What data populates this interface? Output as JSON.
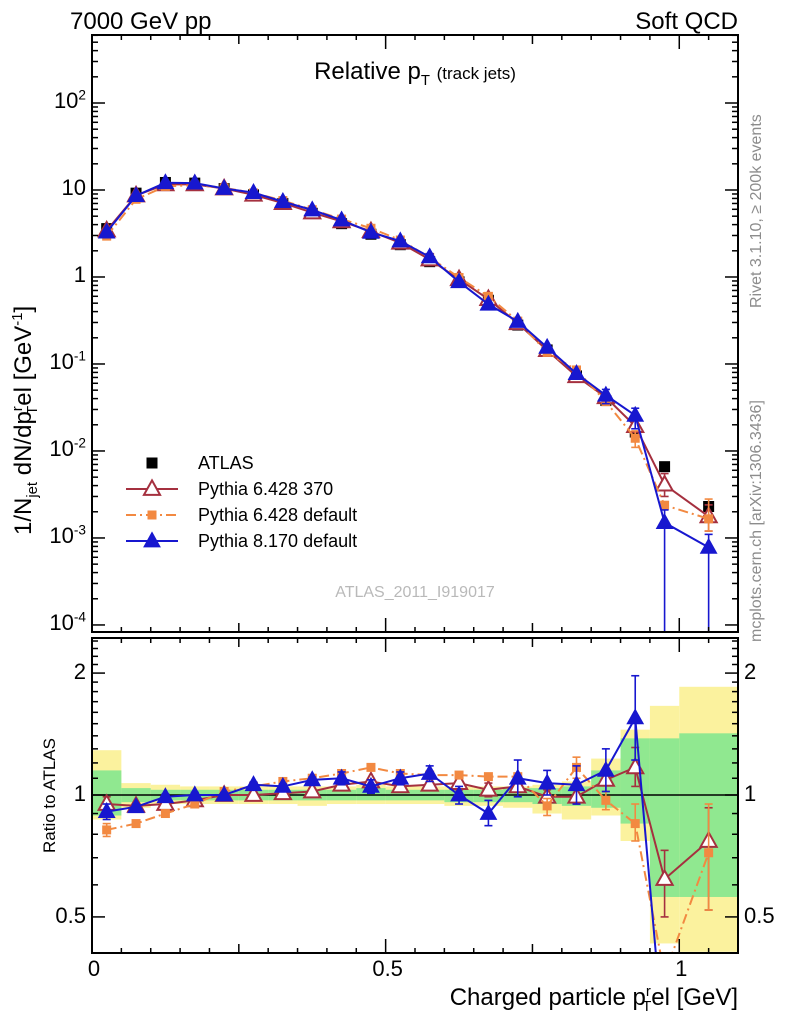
{
  "header": {
    "left": "7000 GeV pp",
    "right": "Soft QCD"
  },
  "side_notes": {
    "top": "Rivet 3.1.10, ≥ 200k events",
    "bottom": "mcplots.cern.ch [arXiv:1306.3436]"
  },
  "watermark": "ATLAS_2011_I919017",
  "colors": {
    "atlas": "#000000",
    "red": "#a5303f",
    "orange": "#f28941",
    "blue": "#1717cf",
    "band_green": "#90e890",
    "band_yellow": "#fbf29e",
    "note_gray": "#8c8c8c",
    "watermark_gray": "#b9b9b9"
  },
  "chart_data": {
    "type": "line",
    "title": "Relative p_{T}",
    "title_note": "(track jets)",
    "xlabel": "Charged particle p^{r}_{T}el [GeV]",
    "ylabel_main": "1/N_{jet} dN/dp^{r}_{T}el [GeV^{-1}]",
    "ylabel_ratio": "Ratio to ATLAS",
    "x_range": [
      0,
      1.1
    ],
    "y_range_main": [
      8.3e-05,
      605
    ],
    "y_scale_main": "log",
    "y_range_ratio": [
      0.407,
      2.442
    ],
    "y_scale_ratio": "log",
    "x_major_ticks": [
      0,
      0.5,
      1
    ],
    "y_major_tick_exponents_main": [
      2,
      1,
      0,
      -1,
      -2,
      -3,
      -4
    ],
    "y_major_ticks_ratio": [
      2,
      1,
      0.5
    ],
    "bin_edges": [
      0,
      0.05,
      0.1,
      0.15,
      0.2,
      0.25,
      0.3,
      0.35,
      0.4,
      0.45,
      0.5,
      0.55,
      0.6,
      0.65,
      0.7,
      0.75,
      0.8,
      0.85,
      0.9,
      0.95,
      1.0,
      1.1
    ],
    "x": [
      0.025,
      0.075,
      0.125,
      0.175,
      0.225,
      0.275,
      0.325,
      0.375,
      0.425,
      0.475,
      0.525,
      0.575,
      0.625,
      0.675,
      0.725,
      0.775,
      0.825,
      0.875,
      0.925,
      0.975,
      1.05
    ],
    "series": [
      {
        "name": "ATLAS",
        "color_key": "atlas",
        "marker": "square-filled",
        "line": "none",
        "values": [
          3.6,
          9.2,
          12.2,
          12.0,
          10.4,
          8.8,
          7.0,
          5.4,
          4.1,
          3.1,
          2.35,
          1.5,
          0.88,
          0.54,
          0.28,
          0.145,
          0.073,
          0.038,
          0.0165,
          0.0066,
          0.0023
        ],
        "ratio": null,
        "ratio_err": null,
        "main_err": {}
      },
      {
        "name": "Pythia 6.428 370",
        "color_key": "red",
        "marker": "triangle-open",
        "line": "solid",
        "values": [
          3.42,
          8.65,
          11.6,
          11.6,
          10.4,
          8.8,
          7.07,
          5.51,
          4.35,
          3.35,
          2.47,
          1.59,
          0.941,
          0.556,
          0.294,
          0.144,
          0.0723,
          0.0414,
          0.0193,
          0.0041,
          0.00177
        ],
        "ratio": [
          0.95,
          0.94,
          0.95,
          0.97,
          1.0,
          1.0,
          1.01,
          1.02,
          1.06,
          1.08,
          1.05,
          1.06,
          1.07,
          1.03,
          1.05,
          0.99,
          0.99,
          1.09,
          1.17,
          0.62,
          0.77
        ],
        "ratio_err": [
          [
            0.91,
            0.99
          ],
          null,
          null,
          null,
          null,
          null,
          null,
          null,
          null,
          null,
          null,
          null,
          [
            1.03,
            1.11
          ],
          [
            0.99,
            1.07
          ],
          null,
          [
            0.95,
            1.03
          ],
          [
            0.95,
            1.03
          ],
          [
            1.02,
            1.14
          ],
          [
            1.05,
            1.31
          ],
          [
            0.5,
            0.73
          ],
          [
            0.52,
            0.93
          ]
        ],
        "main_err": {
          "18": [
            0.013,
            0.02
          ],
          "19": [
            0.003,
            0.0055
          ],
          "20": [
            0.0012,
            0.0024
          ]
        }
      },
      {
        "name": "Pythia 6.428 default",
        "color_key": "orange",
        "marker": "square-filled",
        "line": "dashdot",
        "values": [
          2.95,
          7.82,
          11.0,
          11.4,
          10.6,
          9.24,
          7.56,
          5.94,
          4.63,
          3.63,
          2.66,
          1.68,
          0.986,
          0.599,
          0.311,
          0.136,
          0.0854,
          0.0369,
          0.014,
          0.00238,
          0.00166
        ],
        "ratio": [
          0.82,
          0.85,
          0.9,
          0.95,
          1.02,
          1.05,
          1.08,
          1.1,
          1.13,
          1.17,
          1.13,
          1.12,
          1.12,
          1.11,
          1.11,
          0.94,
          1.17,
          0.97,
          0.85,
          0.36,
          0.72
        ],
        "ratio_err": [
          [
            0.79,
            0.85
          ],
          null,
          null,
          null,
          null,
          null,
          null,
          null,
          null,
          null,
          null,
          null,
          null,
          null,
          null,
          [
            0.89,
            0.98
          ],
          [
            1.1,
            1.24
          ],
          [
            0.92,
            1.02
          ],
          [
            0.77,
            0.95
          ],
          null,
          [
            0.52,
            0.95
          ]
        ],
        "main_err": {
          "18": [
            0.011,
            0.017
          ],
          "20": [
            0.0012,
            0.0028
          ]
        }
      },
      {
        "name": "Pythia 8.170 default",
        "color_key": "blue",
        "marker": "triangle-filled",
        "line": "solid",
        "values": [
          3.28,
          8.6,
          12.1,
          12.0,
          10.4,
          9.33,
          7.35,
          5.89,
          4.51,
          3.26,
          2.59,
          1.7,
          0.88,
          0.486,
          0.308,
          0.155,
          0.0774,
          0.0437,
          0.0256,
          0.0015,
          0.00078
        ],
        "ratio": [
          0.91,
          0.935,
          0.99,
          1.0,
          1.0,
          1.06,
          1.05,
          1.09,
          1.1,
          1.05,
          1.1,
          1.13,
          1.0,
          0.9,
          1.1,
          1.07,
          1.06,
          1.15,
          1.55,
          0.23,
          0.34
        ],
        "ratio_err": [
          [
            0.87,
            0.95
          ],
          null,
          null,
          null,
          null,
          null,
          null,
          null,
          [
            1.06,
            1.14
          ],
          [
            1.01,
            1.09
          ],
          [
            1.06,
            1.14
          ],
          [
            1.08,
            1.18
          ],
          [
            0.95,
            1.05
          ],
          [
            0.84,
            0.97
          ],
          [
            0.99,
            1.22
          ],
          [
            1.0,
            1.15
          ],
          [
            0.95,
            1.18
          ],
          [
            1.02,
            1.3
          ],
          [
            1.22,
            1.97
          ],
          null,
          null
        ],
        "main_err": {
          "11": [
            1.55,
            1.85
          ],
          "17": [
            0.035,
            0.051
          ],
          "18": [
            0.018,
            0.031
          ],
          "19": [
            8e-05,
            0.0021
          ],
          "20": [
            8e-05,
            0.0011
          ]
        }
      }
    ],
    "bands": {
      "green": [
        [
          0.89,
          1.15
        ],
        [
          0.96,
          1.04
        ],
        [
          0.97,
          1.03
        ],
        [
          0.97,
          1.03
        ],
        [
          0.97,
          1.03
        ],
        [
          0.97,
          1.03
        ],
        [
          0.97,
          1.03
        ],
        [
          0.97,
          1.03
        ],
        [
          0.97,
          1.03
        ],
        [
          0.97,
          1.04
        ],
        [
          0.97,
          1.03
        ],
        [
          0.97,
          1.03
        ],
        [
          0.96,
          1.03
        ],
        [
          0.96,
          1.03
        ],
        [
          0.96,
          1.04
        ],
        [
          0.95,
          1.04
        ],
        [
          0.94,
          1.05
        ],
        [
          0.93,
          1.15
        ],
        [
          0.85,
          1.38
        ],
        [
          0.56,
          1.38
        ],
        [
          0.56,
          1.42
        ]
      ],
      "yellow": [
        [
          0.87,
          1.29
        ],
        [
          0.93,
          1.07
        ],
        [
          0.95,
          1.06
        ],
        [
          0.95,
          1.05
        ],
        [
          0.95,
          1.05
        ],
        [
          0.95,
          1.05
        ],
        [
          0.95,
          1.05
        ],
        [
          0.94,
          1.05
        ],
        [
          0.95,
          1.05
        ],
        [
          0.95,
          1.06
        ],
        [
          0.95,
          1.05
        ],
        [
          0.95,
          1.05
        ],
        [
          0.94,
          1.05
        ],
        [
          0.94,
          1.05
        ],
        [
          0.93,
          1.05
        ],
        [
          0.9,
          1.06
        ],
        [
          0.87,
          1.08
        ],
        [
          0.89,
          1.23
        ],
        [
          0.77,
          1.45
        ],
        [
          0.43,
          1.66
        ],
        [
          0.41,
          1.85
        ]
      ]
    }
  }
}
